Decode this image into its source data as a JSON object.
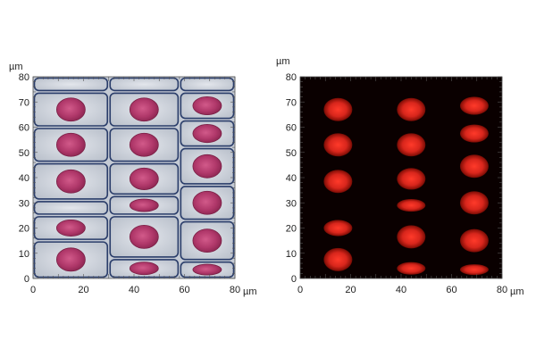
{
  "panels": [
    {
      "name": "brightfield",
      "unit_label": "µm",
      "x_ticks": [
        "0",
        "20",
        "40",
        "60",
        "80"
      ],
      "x_unit": "µm",
      "y_ticks": [
        "0",
        "10",
        "20",
        "30",
        "40",
        "50",
        "60",
        "70",
        "80"
      ],
      "xlim": [
        0,
        80
      ],
      "ylim": [
        0,
        80
      ]
    },
    {
      "name": "fluorescence",
      "unit_label": "µm",
      "x_ticks": [
        "0",
        "20",
        "40",
        "60",
        "80"
      ],
      "x_unit": "µm",
      "y_ticks": [
        "0",
        "10",
        "20",
        "30",
        "40",
        "50",
        "60",
        "70",
        "80"
      ],
      "xlim": [
        0,
        80
      ],
      "ylim": [
        0,
        80
      ]
    }
  ],
  "colors": {
    "brightfield_background": "#c9cfd8",
    "cell_wall": "#2a3d6a",
    "nucleus_stain": "#b0386a",
    "fluorescence_background": "#0a0000",
    "fluorescence_nucleus": "#e0281e"
  }
}
